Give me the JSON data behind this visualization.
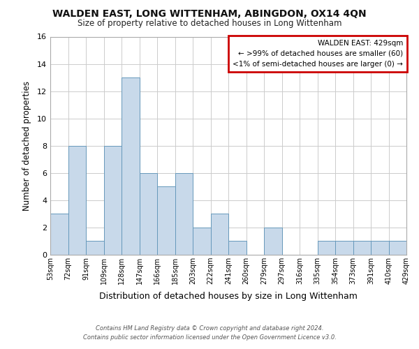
{
  "title": "WALDEN EAST, LONG WITTENHAM, ABINGDON, OX14 4QN",
  "subtitle": "Size of property relative to detached houses in Long Wittenham",
  "xlabel": "Distribution of detached houses by size in Long Wittenham",
  "ylabel": "Number of detached properties",
  "bar_color": "#c8d9ea",
  "bar_edge_color": "#6699bb",
  "categories": [
    "53sqm",
    "72sqm",
    "91sqm",
    "109sqm",
    "128sqm",
    "147sqm",
    "166sqm",
    "185sqm",
    "203sqm",
    "222sqm",
    "241sqm",
    "260sqm",
    "279sqm",
    "297sqm",
    "316sqm",
    "335sqm",
    "354sqm",
    "373sqm",
    "391sqm",
    "410sqm",
    "429sqm"
  ],
  "bar_values": [
    3,
    8,
    1,
    8,
    13,
    6,
    5,
    6,
    2,
    3,
    1,
    0,
    2,
    0,
    0,
    1,
    1,
    1,
    1,
    1
  ],
  "ylim": [
    0,
    16
  ],
  "yticks": [
    0,
    2,
    4,
    6,
    8,
    10,
    12,
    14,
    16
  ],
  "legend_title": "WALDEN EAST: 429sqm",
  "legend_line1": "← >99% of detached houses are smaller (60)",
  "legend_line2": "<1% of semi-detached houses are larger (0) →",
  "legend_box_color": "#cc0000",
  "footer_line1": "Contains HM Land Registry data © Crown copyright and database right 2024.",
  "footer_line2": "Contains public sector information licensed under the Open Government Licence v3.0.",
  "background_color": "#ffffff",
  "grid_color": "#cccccc"
}
